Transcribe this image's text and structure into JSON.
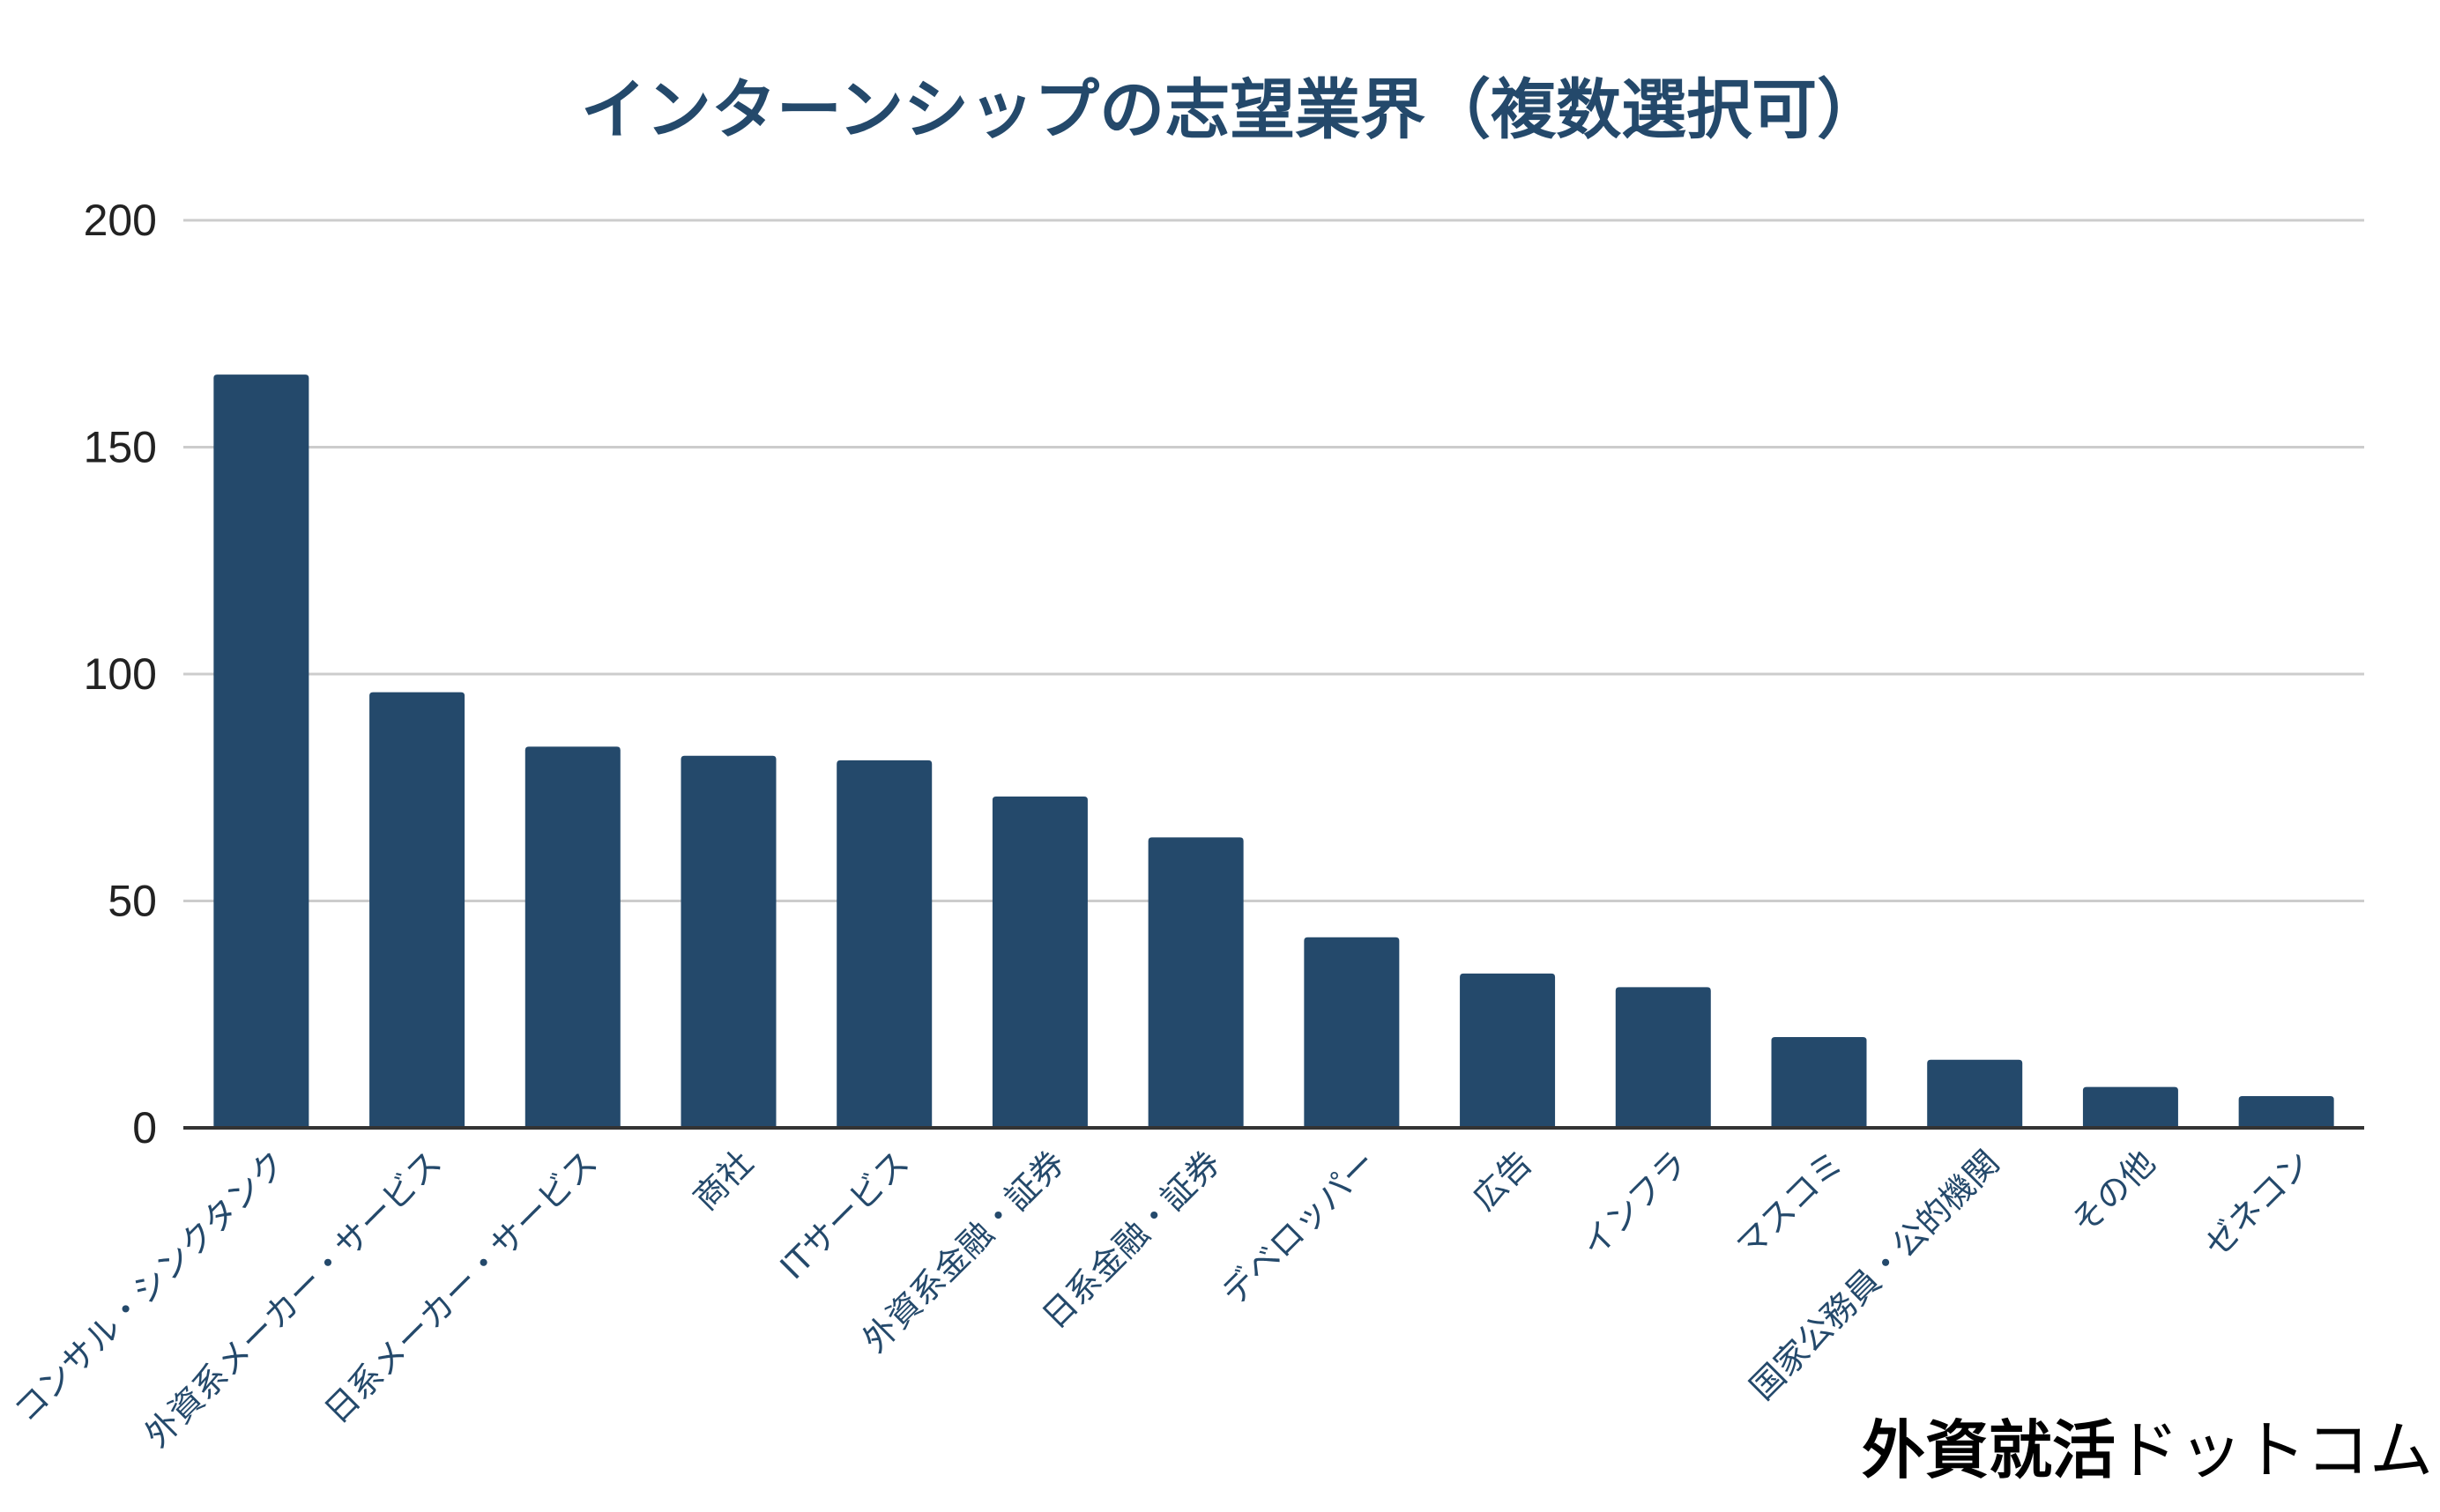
{
  "chart_data": {
    "type": "bar",
    "title": "インターンシップの志望業界（複数選択可）",
    "xlabel": "",
    "ylabel": "",
    "ylim": [
      0,
      200
    ],
    "yticks": [
      0,
      50,
      100,
      150,
      200
    ],
    "grid": true,
    "categories": [
      "コンサル・シンクタンク",
      "外資系メーカー・サービス",
      "日系メーカー・サービス",
      "商社",
      "ITサービス",
      "外資系金融・証券",
      "日系金融・証券",
      "デベロッパー",
      "広告",
      "インフラ",
      "マスコミ",
      "国家公務員・公的機関",
      "その他",
      "ゼネコン"
    ],
    "values": [
      166,
      96,
      84,
      82,
      81,
      73,
      64,
      42,
      34,
      31,
      20,
      15,
      9,
      7
    ]
  },
  "colors": {
    "bar": "#24496b",
    "title": "#24496b",
    "category_label": "#24496b",
    "tick_label": "#222222",
    "grid": "#cccccc",
    "axis": "#333333"
  },
  "watermark": {
    "strong": "外資就活",
    "light": "ドットコム"
  }
}
